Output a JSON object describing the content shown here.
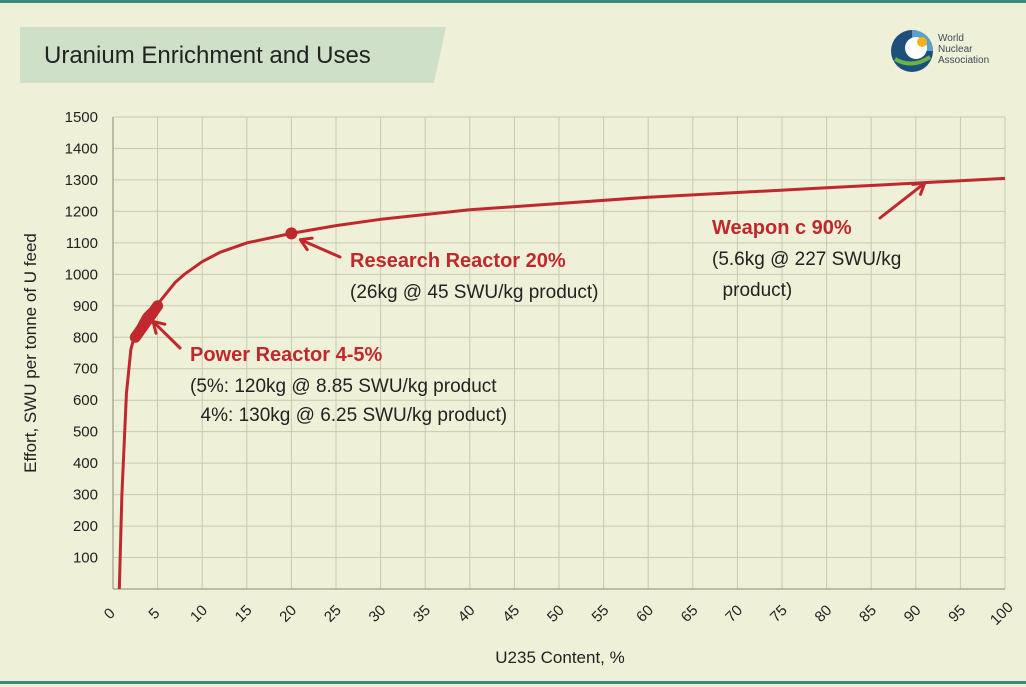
{
  "logo": {
    "lines": [
      "World",
      "Nuclear",
      "Association"
    ]
  },
  "chart_data": {
    "type": "line",
    "title": "Uranium Enrichment and Uses",
    "xlabel": "U235 Content, %",
    "ylabel": "Effort, SWU per tonne of U feed",
    "xlim": [
      0,
      100
    ],
    "ylim": [
      0,
      1500
    ],
    "xticks": [
      0,
      5,
      10,
      15,
      20,
      25,
      30,
      35,
      40,
      45,
      50,
      55,
      60,
      65,
      70,
      75,
      80,
      85,
      90,
      95,
      100
    ],
    "yticks": [
      100,
      200,
      300,
      400,
      500,
      600,
      700,
      800,
      900,
      1000,
      1100,
      1200,
      1300,
      1400,
      1500
    ],
    "grid": true,
    "colors": {
      "line": "#c0282d",
      "annotation_title": "#c0282d",
      "annotation_text": "#222222",
      "grid": "#c8cab0",
      "background": "#eef0d8"
    },
    "series": [
      {
        "x": [
          0.711,
          1.0,
          1.5,
          2.0,
          2.5,
          3.0,
          3.5,
          4.0,
          4.5,
          5.0,
          6.0,
          7.0,
          8.0,
          10.0,
          12.0,
          15.0,
          20.0,
          25.0,
          30.0,
          40.0,
          50.0,
          60.0,
          70.0,
          80.0,
          90.0,
          100.0
        ],
        "y": [
          0,
          300,
          620,
          760,
          815,
          845,
          870,
          885,
          895,
          905,
          940,
          975,
          1000,
          1040,
          1070,
          1100,
          1130,
          1155,
          1175,
          1205,
          1225,
          1245,
          1260,
          1275,
          1290,
          1305
        ]
      }
    ],
    "markers": [
      {
        "kind": "segment",
        "x": [
          2.5,
          5.0
        ],
        "y": [
          800,
          900
        ]
      },
      {
        "kind": "point",
        "x": 20,
        "y": 1130
      }
    ],
    "annotations": [
      {
        "title": "Power Reactor 4-5%",
        "lines": [
          "(5%: 120kg @ 8.85 SWU/kg product",
          "  4%: 130kg @ 6.25 SWU/kg product)"
        ],
        "arrow_to": [
          4.5,
          850
        ]
      },
      {
        "title": "Research Reactor 20%",
        "lines": [
          "(26kg @ 45 SWU/kg product)"
        ],
        "arrow_to": [
          21,
          1110
        ]
      },
      {
        "title": "Weapon c 90%",
        "lines": [
          "(5.6kg @ 227 SWU/kg",
          "  product)"
        ],
        "arrow_to": [
          91,
          1290
        ]
      }
    ]
  }
}
